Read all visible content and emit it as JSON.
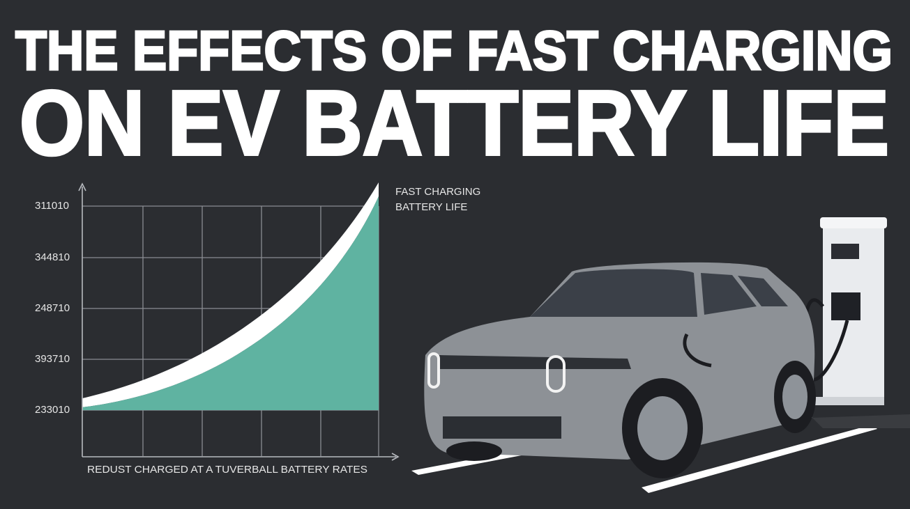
{
  "header": {
    "line1": "THE EFFECTS OF FAST CHARGING",
    "line2": "ON EV BATTERY LIFE"
  },
  "chart": {
    "y_labels": [
      "311010",
      "344810",
      "248710",
      "393710",
      "233010"
    ],
    "x_label": "REDUST CHARGED AT A TUVERBALL BATTERY RATES",
    "legend": [
      "FAST CHARGING",
      "BATTERY LIFE"
    ]
  }
}
